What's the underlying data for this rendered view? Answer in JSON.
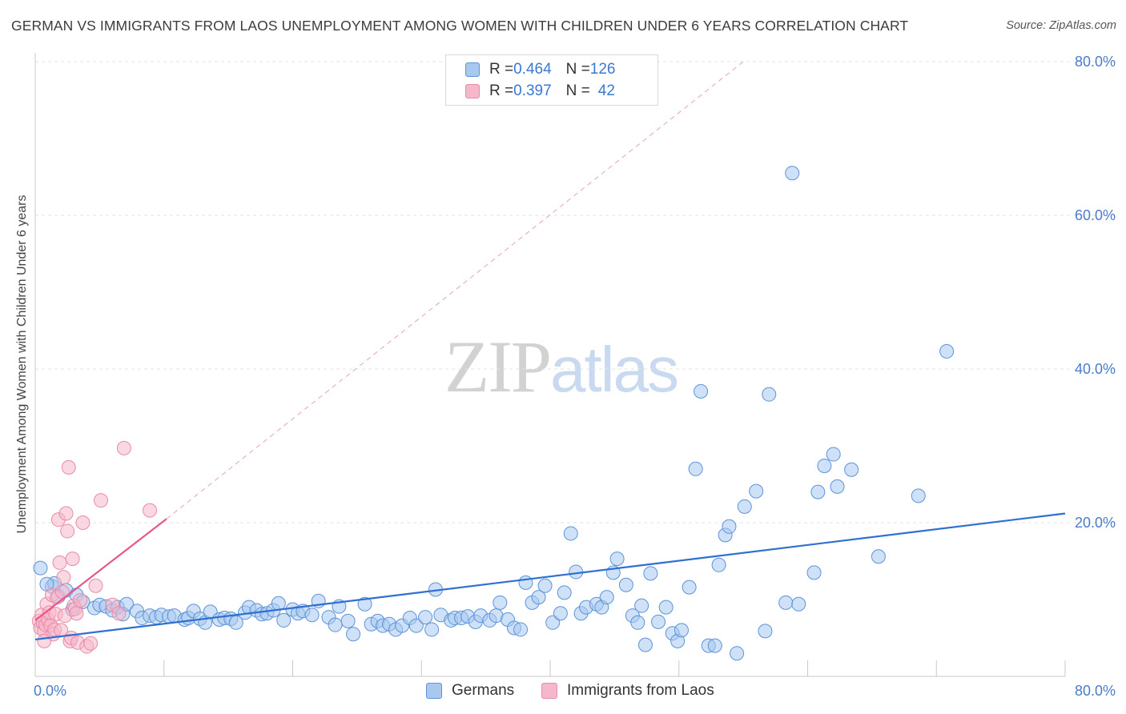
{
  "title": "GERMAN VS IMMIGRANTS FROM LAOS UNEMPLOYMENT AMONG WOMEN WITH CHILDREN UNDER 6 YEARS CORRELATION CHART",
  "source": "Source: ZipAtlas.com",
  "watermark": {
    "part1": "ZIP",
    "part2": "atlas"
  },
  "legend": {
    "rows": [
      {
        "r_label": "R = ",
        "r_value": "0.464",
        "n_label": "N = ",
        "n_value": "126",
        "color": "#a8c8f0"
      },
      {
        "r_label": "R = ",
        "r_value": "0.397",
        "n_label": "N = ",
        "n_value": "42",
        "color": "#f5b8cb"
      }
    ]
  },
  "chart_data": {
    "type": "scatter",
    "title": "GERMAN VS IMMIGRANTS FROM LAOS UNEMPLOYMENT AMONG WOMEN WITH CHILDREN UNDER 6 YEARS CORRELATION CHART",
    "xlabel": "",
    "ylabel": "Unemployment Among Women with Children Under 6 years",
    "xlim": [
      0,
      80
    ],
    "ylim": [
      0,
      80
    ],
    "x_tick_labels": [
      "0.0%",
      "80.0%"
    ],
    "y_tick_labels": [
      "20.0%",
      "40.0%",
      "60.0%",
      "80.0%"
    ],
    "y_ticks": [
      20,
      40,
      60,
      80
    ],
    "series": [
      {
        "name": "Germans",
        "color": "#a8c8f0",
        "edge": "#5d93d8",
        "trend": {
          "x0": 0,
          "y0": 4.8,
          "x1": 80,
          "y1": 21.2,
          "color": "#2f6fd0"
        },
        "points": [
          [
            0.4,
            14.1
          ],
          [
            1.3,
            11.7
          ],
          [
            1.5,
            12.1
          ],
          [
            1.8,
            10.4
          ],
          [
            2.4,
            11.2
          ],
          [
            2.9,
            8.7
          ],
          [
            3.2,
            10.6
          ],
          [
            3.7,
            9.7
          ],
          [
            4.6,
            8.9
          ],
          [
            5.0,
            9.3
          ],
          [
            5.5,
            9.1
          ],
          [
            6.0,
            8.6
          ],
          [
            6.4,
            9.0
          ],
          [
            6.8,
            8.1
          ],
          [
            7.1,
            9.4
          ],
          [
            7.9,
            8.5
          ],
          [
            8.3,
            7.6
          ],
          [
            8.9,
            7.9
          ],
          [
            9.4,
            7.7
          ],
          [
            9.8,
            8.0
          ],
          [
            10.4,
            7.8
          ],
          [
            10.8,
            7.9
          ],
          [
            11.6,
            7.4
          ],
          [
            11.9,
            7.6
          ],
          [
            12.3,
            8.5
          ],
          [
            12.8,
            7.5
          ],
          [
            13.2,
            7.0
          ],
          [
            13.6,
            8.4
          ],
          [
            14.3,
            7.4
          ],
          [
            14.7,
            7.6
          ],
          [
            15.2,
            7.5
          ],
          [
            15.6,
            7.0
          ],
          [
            16.3,
            8.3
          ],
          [
            16.6,
            9.0
          ],
          [
            17.2,
            8.6
          ],
          [
            17.6,
            8.1
          ],
          [
            18.0,
            8.2
          ],
          [
            18.5,
            8.6
          ],
          [
            18.9,
            9.5
          ],
          [
            19.3,
            7.3
          ],
          [
            20.0,
            8.7
          ],
          [
            20.4,
            8.2
          ],
          [
            20.8,
            8.5
          ],
          [
            21.5,
            8.0
          ],
          [
            22.0,
            9.8
          ],
          [
            22.8,
            7.7
          ],
          [
            23.3,
            6.7
          ],
          [
            23.6,
            9.1
          ],
          [
            24.3,
            7.2
          ],
          [
            24.7,
            5.5
          ],
          [
            25.6,
            9.4
          ],
          [
            26.1,
            6.8
          ],
          [
            26.6,
            7.2
          ],
          [
            27.0,
            6.6
          ],
          [
            27.5,
            6.8
          ],
          [
            28.0,
            6.1
          ],
          [
            28.5,
            6.6
          ],
          [
            29.1,
            7.6
          ],
          [
            29.6,
            6.6
          ],
          [
            30.3,
            7.7
          ],
          [
            30.8,
            6.1
          ],
          [
            31.1,
            11.3
          ],
          [
            31.5,
            8.0
          ],
          [
            32.3,
            7.3
          ],
          [
            32.6,
            7.6
          ],
          [
            33.1,
            7.6
          ],
          [
            33.6,
            7.8
          ],
          [
            34.2,
            7.1
          ],
          [
            34.6,
            7.9
          ],
          [
            35.3,
            7.3
          ],
          [
            35.8,
            7.9
          ],
          [
            36.1,
            9.6
          ],
          [
            36.7,
            7.4
          ],
          [
            37.2,
            6.3
          ],
          [
            37.7,
            6.1
          ],
          [
            38.1,
            12.2
          ],
          [
            38.6,
            9.6
          ],
          [
            39.1,
            10.3
          ],
          [
            39.6,
            11.8
          ],
          [
            40.2,
            7.0
          ],
          [
            40.8,
            8.2
          ],
          [
            41.1,
            10.9
          ],
          [
            41.6,
            18.6
          ],
          [
            42.0,
            13.6
          ],
          [
            42.4,
            8.2
          ],
          [
            42.8,
            9.0
          ],
          [
            43.6,
            9.4
          ],
          [
            44.0,
            9.0
          ],
          [
            44.4,
            10.3
          ],
          [
            44.9,
            13.5
          ],
          [
            45.2,
            15.3
          ],
          [
            45.9,
            11.9
          ],
          [
            46.4,
            7.9
          ],
          [
            46.8,
            7.0
          ],
          [
            47.1,
            9.2
          ],
          [
            47.4,
            4.1
          ],
          [
            47.8,
            13.4
          ],
          [
            48.4,
            7.1
          ],
          [
            49.0,
            9.0
          ],
          [
            49.5,
            5.6
          ],
          [
            49.9,
            4.6
          ],
          [
            50.2,
            6.0
          ],
          [
            50.8,
            11.6
          ],
          [
            51.3,
            27.0
          ],
          [
            51.7,
            37.1
          ],
          [
            52.3,
            4.0
          ],
          [
            52.8,
            4.0
          ],
          [
            53.1,
            14.5
          ],
          [
            53.6,
            18.4
          ],
          [
            53.9,
            19.5
          ],
          [
            54.5,
            3.0
          ],
          [
            55.1,
            22.1
          ],
          [
            56.0,
            24.1
          ],
          [
            56.7,
            5.9
          ],
          [
            57.0,
            36.7
          ],
          [
            58.3,
            9.6
          ],
          [
            58.8,
            65.5
          ],
          [
            59.3,
            9.4
          ],
          [
            60.5,
            13.5
          ],
          [
            60.8,
            24.0
          ],
          [
            61.3,
            27.4
          ],
          [
            62.0,
            28.9
          ],
          [
            62.3,
            24.7
          ],
          [
            63.4,
            26.9
          ],
          [
            65.5,
            15.6
          ],
          [
            68.6,
            23.5
          ],
          [
            70.8,
            42.3
          ],
          [
            0.9,
            12.0
          ]
        ]
      },
      {
        "name": "Immigrants from Laos",
        "color": "#f5b8cb",
        "edge": "#e88aa8",
        "trend": {
          "x0": 0,
          "y0": 7.3,
          "x1": 10.2,
          "y1": 20.5,
          "color": "#e8578a",
          "ext_x1": 55,
          "ext_y1": 80
        },
        "points": [
          [
            0.3,
            7.2
          ],
          [
            0.4,
            6.3
          ],
          [
            0.5,
            8.0
          ],
          [
            0.6,
            7.0
          ],
          [
            0.7,
            5.9
          ],
          [
            0.8,
            6.7
          ],
          [
            0.9,
            9.4
          ],
          [
            1.0,
            7.4
          ],
          [
            1.1,
            8.3
          ],
          [
            1.2,
            6.6
          ],
          [
            1.3,
            10.6
          ],
          [
            1.4,
            5.5
          ],
          [
            1.5,
            6.1
          ],
          [
            1.6,
            8.1
          ],
          [
            1.7,
            10.3
          ],
          [
            1.8,
            20.4
          ],
          [
            1.9,
            14.8
          ],
          [
            2.0,
            6.0
          ],
          [
            2.1,
            11.0
          ],
          [
            2.2,
            12.9
          ],
          [
            2.3,
            7.9
          ],
          [
            2.4,
            21.2
          ],
          [
            2.5,
            18.9
          ],
          [
            2.6,
            27.2
          ],
          [
            2.7,
            4.6
          ],
          [
            2.8,
            5.0
          ],
          [
            2.9,
            15.3
          ],
          [
            3.0,
            9.2
          ],
          [
            3.1,
            8.8
          ],
          [
            3.2,
            8.2
          ],
          [
            3.3,
            4.4
          ],
          [
            3.5,
            9.9
          ],
          [
            3.7,
            20.0
          ],
          [
            4.0,
            3.9
          ],
          [
            4.3,
            4.3
          ],
          [
            4.7,
            11.8
          ],
          [
            5.1,
            22.9
          ],
          [
            6.0,
            9.3
          ],
          [
            6.5,
            8.2
          ],
          [
            6.9,
            29.7
          ],
          [
            8.9,
            21.6
          ],
          [
            0.7,
            4.6
          ]
        ]
      }
    ]
  },
  "bottom_legend": [
    {
      "label": "Germans",
      "color": "#a8c8f0"
    },
    {
      "label": "Immigrants from Laos",
      "color": "#f5b8cb"
    }
  ]
}
